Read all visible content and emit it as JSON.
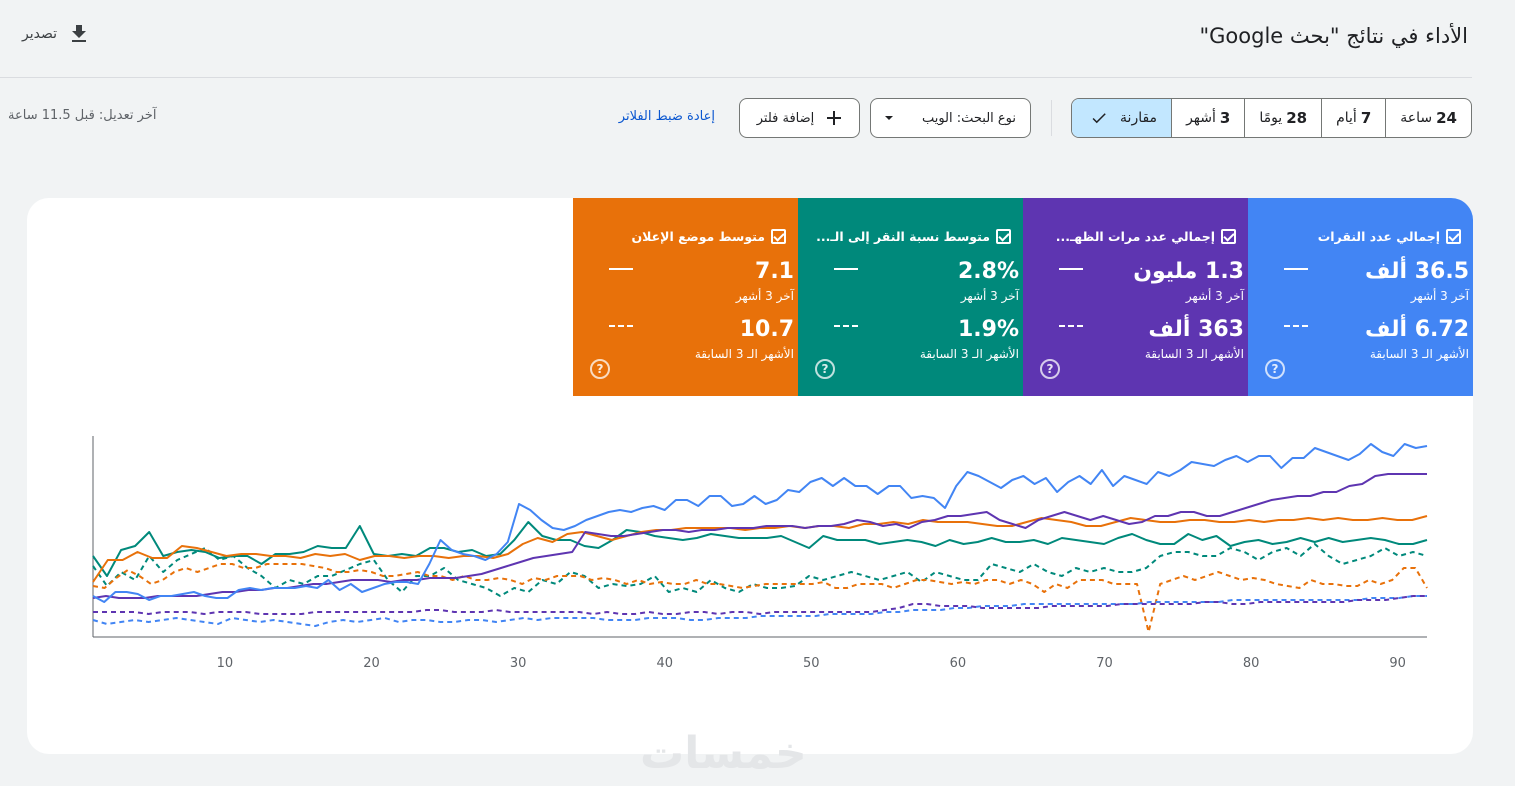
{
  "header": {
    "title": "الأداء في نتائج \"بحث Google\"",
    "export_label": "تصدير",
    "export_icon": "download-icon"
  },
  "toolbar": {
    "date_ranges": [
      {
        "num": "24",
        "unit": "ساعة"
      },
      {
        "num": "7",
        "unit": "أيام"
      },
      {
        "num": "28",
        "unit": "يومًا"
      },
      {
        "num": "3",
        "unit": "أشهر"
      }
    ],
    "compare_label": "مقارنة",
    "compare_icon": "check-icon",
    "search_type_label": "نوع البحث: الويب",
    "search_type_icon": "dropdown-arrow-icon",
    "add_filter_label": "إضافة فلتر",
    "add_filter_icon": "plus-icon",
    "reset_filters_label": "إعادة ضبط الفلاتر",
    "last_updated": "آخر تعديل: قبل 11.5 ساعة"
  },
  "metrics": [
    {
      "label": "إجمالي عدد النقرات",
      "current": "36.5 ألف",
      "current_period": "آخر 3 أشهر",
      "previous": "6.72 ألف",
      "previous_period": "الأشهر الـ 3 السابقة",
      "color": "#4285f4"
    },
    {
      "label": "إجمالي عدد مرات الظهـ...",
      "current": "1.3 مليون",
      "current_period": "آخر 3 أشهر",
      "previous": "363 ألف",
      "previous_period": "الأشهر الـ 3 السابقة",
      "color": "#5e35b1"
    },
    {
      "label": "متوسط نسبة النقر إلى الـ...",
      "current": "2.8%",
      "current_period": "آخر 3 أشهر",
      "previous": "1.9%",
      "previous_period": "الأشهر الـ 3 السابقة",
      "color": "#00897b"
    },
    {
      "label": "متوسط موضع الإعلان",
      "current": "7.1",
      "current_period": "آخر 3 أشهر",
      "previous": "10.7",
      "previous_period": "الأشهر الـ 3 السابقة",
      "color": "#e8710a"
    }
  ],
  "watermark": "خمسات",
  "chart_data": {
    "type": "line",
    "x_ticks": [
      10,
      20,
      30,
      40,
      50,
      60,
      70,
      80,
      90
    ],
    "xlim": [
      1,
      92
    ],
    "ylim": [
      0,
      100
    ],
    "normalized_y": true,
    "grid": false,
    "series": [
      {
        "color": "#4285f4",
        "dashed": false,
        "values": [
          20,
          17,
          22,
          22,
          21,
          18,
          20,
          20,
          21,
          22,
          20,
          19,
          19,
          23,
          24,
          23,
          24,
          24,
          24,
          25,
          24,
          28,
          23,
          26,
          22,
          24,
          26,
          27,
          27,
          26,
          36,
          48,
          43,
          41,
          40,
          38,
          41,
          47,
          66,
          63,
          58,
          54,
          53,
          55,
          58,
          60,
          62,
          63,
          62,
          64,
          65,
          63,
          68,
          68,
          65,
          70,
          70,
          65,
          66,
          70,
          66,
          68,
          73,
          72,
          77,
          79,
          75,
          79,
          75,
          75,
          71,
          75,
          75,
          69,
          70,
          69,
          64,
          75,
          82,
          80,
          77,
          74,
          78,
          80,
          76,
          79,
          72,
          77,
          80,
          76,
          83,
          75,
          80,
          78,
          76,
          82,
          80,
          83,
          87,
          86,
          85,
          88,
          90,
          87,
          90,
          90,
          84,
          89,
          89,
          94,
          92,
          90,
          88,
          91,
          96,
          92,
          90,
          96,
          94,
          95
        ]
      },
      {
        "color": "#5e35b1",
        "dashed": false,
        "values": [
          19,
          20,
          19,
          19,
          19,
          20,
          20,
          20,
          20,
          21,
          22,
          22,
          23,
          23,
          24,
          24,
          25,
          26,
          26,
          27,
          28,
          28,
          28,
          27,
          28,
          28,
          29,
          29,
          29,
          30,
          31,
          33,
          35,
          37,
          39,
          40,
          41,
          42,
          52,
          51,
          50,
          50,
          51,
          52,
          53,
          53,
          52,
          53,
          53,
          54,
          54,
          54,
          55,
          55,
          55,
          54,
          55,
          55,
          56,
          58,
          57,
          55,
          56,
          54,
          57,
          58,
          60,
          60,
          61,
          62,
          58,
          56,
          54,
          58,
          60,
          62,
          60,
          58,
          60,
          58,
          56,
          57,
          60,
          60,
          62,
          62,
          60,
          60,
          62,
          64,
          66,
          68,
          69,
          70,
          70,
          72,
          72,
          75,
          76,
          80,
          81,
          81,
          81,
          81
        ]
      },
      {
        "color": "#00897b",
        "dashed": false,
        "values": [
          40,
          30,
          43,
          45,
          52,
          40,
          42,
          43,
          42,
          39,
          40,
          40,
          36,
          41,
          41,
          42,
          45,
          44,
          44,
          55,
          41,
          40,
          41,
          40,
          44,
          44,
          42,
          43,
          40,
          41,
          48,
          57,
          50,
          48,
          48,
          45,
          44,
          48,
          53,
          52,
          50,
          49,
          48,
          49,
          51,
          50,
          49,
          49,
          49,
          50,
          47,
          44,
          50,
          48,
          48,
          48,
          46,
          47,
          48,
          47,
          45,
          48,
          46,
          47,
          49,
          47,
          47,
          48,
          46,
          49,
          48,
          47,
          46,
          49,
          51,
          48,
          46,
          46,
          51,
          48,
          50,
          45,
          47,
          48,
          46,
          47,
          49,
          47,
          49,
          47,
          48,
          49,
          48,
          46,
          46,
          48
        ]
      },
      {
        "color": "#e8710a",
        "dashed": false,
        "values": [
          27,
          38,
          38,
          42,
          39,
          39,
          45,
          44,
          42,
          40,
          41,
          41,
          40,
          40,
          39,
          41,
          40,
          41,
          38,
          40,
          40,
          39,
          40,
          40,
          39,
          40,
          40,
          39,
          41,
          46,
          49,
          47,
          51,
          52,
          50,
          48,
          50,
          52,
          53,
          53,
          54,
          54,
          54,
          54,
          53,
          54,
          54,
          55,
          54,
          55,
          55,
          54,
          56,
          56,
          57,
          56,
          58,
          57,
          57,
          57,
          56,
          55,
          55,
          57,
          59,
          58,
          57,
          55,
          55,
          57,
          59,
          58,
          57,
          57,
          58,
          58,
          57,
          57,
          58,
          57,
          58,
          58,
          59,
          58,
          59,
          58,
          58,
          59,
          58,
          58,
          60
        ]
      },
      {
        "color": "#4285f4",
        "dashed": true,
        "values": [
          8,
          6,
          7,
          8,
          7,
          8,
          9,
          8,
          7,
          6,
          9,
          8,
          7,
          8,
          7,
          6,
          5,
          7,
          8,
          7,
          8,
          9,
          7,
          8,
          8,
          7,
          7,
          8,
          8,
          7,
          8,
          9,
          8,
          9,
          9,
          9,
          9,
          8,
          8,
          8,
          9,
          9,
          9,
          8,
          8,
          9,
          9,
          9,
          10,
          10,
          10,
          10,
          10,
          11,
          11,
          11,
          11,
          12,
          12,
          13,
          13,
          13,
          14,
          14,
          15,
          15,
          15,
          16,
          16,
          16,
          16,
          16,
          16,
          16,
          16,
          16,
          17,
          17,
          17,
          17,
          17,
          17,
          18,
          18,
          18,
          18,
          18,
          18,
          18,
          18,
          18,
          18,
          19,
          19,
          19,
          20,
          20
        ]
      },
      {
        "color": "#5e35b1",
        "dashed": true,
        "values": [
          12,
          12,
          12,
          12,
          11,
          12,
          12,
          12,
          11,
          12,
          12,
          12,
          11,
          11,
          11,
          11,
          12,
          12,
          12,
          12,
          12,
          12,
          12,
          12,
          13,
          13,
          12,
          12,
          12,
          13,
          12,
          12,
          12,
          12,
          12,
          12,
          11,
          12,
          11,
          11,
          12,
          11,
          11,
          12,
          12,
          11,
          12,
          12,
          11,
          12,
          12,
          12,
          12,
          12,
          12,
          12,
          12,
          13,
          14,
          16,
          16,
          15,
          15,
          15,
          14,
          14,
          14,
          14,
          14,
          15,
          15,
          15,
          15,
          15,
          16,
          16,
          16,
          16,
          16,
          16,
          17,
          17,
          16,
          16,
          17,
          17,
          17,
          17,
          17,
          17,
          17,
          18,
          18,
          18,
          19,
          20,
          20
        ]
      },
      {
        "color": "#00897b",
        "dashed": true,
        "values": [
          35,
          25,
          32,
          28,
          40,
          32,
          38,
          41,
          44,
          38,
          40,
          34,
          30,
          24,
          28,
          26,
          30,
          30,
          33,
          36,
          38,
          28,
          22,
          30,
          30,
          34,
          28,
          26,
          24,
          20,
          24,
          22,
          28,
          26,
          32,
          30,
          24,
          26,
          25,
          26,
          30,
          22,
          24,
          22,
          28,
          24,
          22,
          26,
          24,
          24,
          25,
          30,
          28,
          30,
          32,
          30,
          28,
          30,
          32,
          27,
          32,
          30,
          28,
          28,
          36,
          34,
          32,
          36,
          32,
          30,
          34,
          32,
          34,
          32,
          32,
          34,
          40,
          42,
          42,
          40,
          40,
          44,
          42,
          38,
          42,
          44,
          40,
          46,
          40,
          36,
          38,
          40,
          44,
          40,
          42,
          40
        ]
      },
      {
        "color": "#e8710a",
        "dashed": true,
        "values": [
          25,
          24,
          29,
          33,
          30,
          26,
          28,
          32,
          34,
          32,
          34,
          36,
          36,
          34,
          34,
          36,
          36,
          36,
          36,
          35,
          34,
          32,
          32,
          33,
          32,
          30,
          30,
          31,
          32,
          30,
          30,
          28,
          30,
          28,
          28,
          29,
          28,
          26,
          29,
          28,
          30,
          30,
          30,
          28,
          29,
          28,
          26,
          28,
          26,
          27,
          26,
          26,
          28,
          26,
          26,
          25,
          24,
          25,
          26,
          26,
          26,
          26,
          26,
          27,
          24,
          24,
          26,
          26,
          26,
          24,
          26,
          28,
          28,
          27,
          26,
          27,
          26,
          28,
          28,
          26,
          28,
          26,
          22,
          26,
          24,
          28,
          28,
          28,
          26,
          26,
          26,
          2,
          26,
          28,
          30,
          28,
          30,
          32,
          30,
          28,
          29,
          28,
          26,
          25,
          24,
          28,
          26,
          26,
          25,
          25,
          28,
          26,
          28,
          34,
          34,
          24
        ]
      }
    ]
  }
}
